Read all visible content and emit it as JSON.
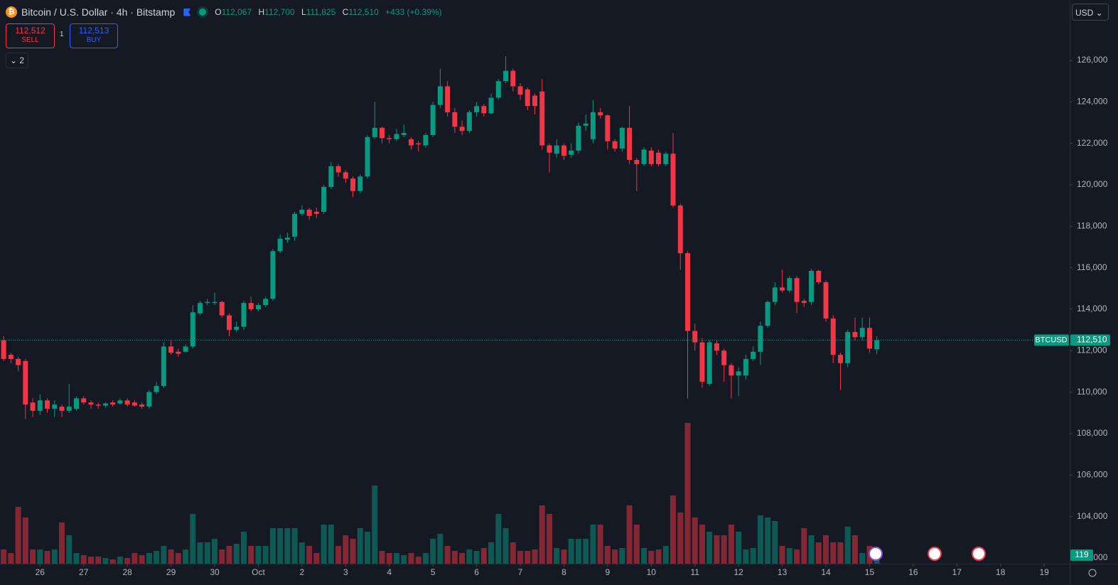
{
  "header": {
    "symbol": "Bitcoin / U.S. Dollar · 4h · Bitstamp",
    "ohlc": [
      {
        "key": "O",
        "value": "112,067"
      },
      {
        "key": "H",
        "value": "112,700"
      },
      {
        "key": "L",
        "value": "111,825"
      },
      {
        "key": "C",
        "value": "112,510"
      }
    ],
    "change": "+433 (+0.39%)"
  },
  "trade": {
    "sell_price": "112,512",
    "sell": "SELL",
    "spread": "1",
    "buy_price": "112,513",
    "buy": "BUY"
  },
  "indicators_count": "2",
  "currency": "USD",
  "symbol_label": "BTCUSD",
  "chart_data": {
    "type": "candlestick",
    "up_color": "#089981",
    "down_color": "#f23645",
    "open": [
      112500,
      111800,
      111600,
      111500,
      109500,
      109100,
      109600,
      109200,
      109300,
      109100,
      109200,
      109700,
      109500,
      109400,
      109350,
      109500,
      109450,
      109600,
      109500,
      109400,
      109300,
      110000,
      110300,
      112200,
      111950,
      111950,
      112200,
      113800,
      114300,
      114300,
      114350,
      113700,
      113000,
      113150,
      114300,
      114000,
      114200,
      114500,
      116800,
      117350,
      117500,
      118600,
      118800,
      118700,
      118700,
      119900,
      120900,
      120600,
      120300,
      119700,
      120400,
      122300,
      122750,
      122250,
      122200,
      122400,
      122200,
      122000,
      121900,
      122400,
      123850,
      124750,
      123500,
      122800,
      122600,
      123500,
      123800,
      123450,
      124200,
      125000,
      125500,
      124750,
      124600,
      124300,
      124500,
      121900,
      121500,
      121900,
      121450,
      121650,
      122850,
      122200,
      123500,
      123350,
      122100,
      121750,
      122750,
      121200,
      121000,
      121650,
      121550,
      121000,
      121500,
      119000,
      116700,
      112950,
      112400,
      110400,
      112350,
      112000,
      111300,
      110800,
      110800,
      111600,
      111950,
      113200,
      114350,
      115050,
      114900,
      115500,
      114400,
      114350,
      115850,
      115300,
      113550,
      111800,
      111400,
      112900,
      112650,
      113100,
      112067
    ],
    "high": [
      112700,
      111900,
      111700,
      111600,
      109700,
      109900,
      109700,
      109600,
      109400,
      110400,
      109800,
      109800,
      109600,
      109500,
      109500,
      109600,
      109700,
      109700,
      109600,
      109500,
      110100,
      110500,
      112400,
      112500,
      112100,
      112300,
      114200,
      114400,
      114500,
      114800,
      114400,
      113800,
      113400,
      114400,
      114600,
      114300,
      114600,
      116900,
      117600,
      117700,
      118700,
      119000,
      118900,
      118900,
      120000,
      121100,
      121000,
      120700,
      120400,
      120500,
      122400,
      124000,
      122800,
      122400,
      122700,
      122900,
      122300,
      122100,
      122500,
      124000,
      125600,
      125000,
      123700,
      123100,
      123600,
      124000,
      123900,
      124400,
      125100,
      126200,
      125600,
      124900,
      124700,
      124400,
      125100,
      122000,
      122200,
      122000,
      122000,
      123000,
      123400,
      124100,
      123700,
      123400,
      122200,
      122800,
      123800,
      121300,
      121800,
      121800,
      121700,
      121600,
      122500,
      119100,
      116800,
      113300,
      112600,
      112500,
      112500,
      112100,
      111400,
      111200,
      111800,
      112200,
      113400,
      114400,
      115300,
      115900,
      115600,
      115600,
      114500,
      115950,
      115900,
      115400,
      113700,
      111900,
      113000,
      113600,
      113600,
      113600,
      112700
    ],
    "low": [
      111500,
      111400,
      111000,
      108700,
      108800,
      108900,
      109000,
      108800,
      108800,
      109000,
      109100,
      109400,
      109200,
      109200,
      109250,
      109300,
      109400,
      109300,
      109300,
      109200,
      109200,
      109900,
      110200,
      111800,
      111700,
      111900,
      112100,
      113700,
      114200,
      114200,
      113600,
      112700,
      112900,
      113000,
      113900,
      113900,
      114100,
      114400,
      116700,
      117200,
      117300,
      118500,
      118300,
      118400,
      118600,
      119800,
      120400,
      120100,
      119400,
      119600,
      120300,
      122200,
      122000,
      122000,
      122100,
      122300,
      121700,
      121600,
      121800,
      122300,
      123700,
      123300,
      122500,
      122400,
      122500,
      123300,
      123300,
      123400,
      124100,
      124900,
      124500,
      124100,
      123600,
      123400,
      121700,
      120600,
      121300,
      121200,
      121300,
      121500,
      122600,
      122000,
      123200,
      121700,
      121600,
      121600,
      121000,
      119700,
      120900,
      120900,
      120900,
      120900,
      118900,
      115900,
      109700,
      112000,
      110200,
      110300,
      111800,
      110500,
      109700,
      109800,
      110600,
      111500,
      111300,
      113100,
      114200,
      114800,
      114800,
      113800,
      114100,
      114200,
      115200,
      113400,
      111400,
      110100,
      111200,
      112500,
      112500,
      111900,
      111825
    ],
    "close": [
      111600,
      111600,
      111300,
      109400,
      109100,
      109600,
      109200,
      109400,
      109100,
      109300,
      109700,
      109500,
      109400,
      109350,
      109450,
      109400,
      109600,
      109400,
      109350,
      109300,
      110000,
      110300,
      112200,
      111900,
      111850,
      112200,
      113850,
      114300,
      114350,
      114350,
      113700,
      113000,
      113150,
      114300,
      114000,
      114200,
      114500,
      116800,
      117400,
      117450,
      118600,
      118800,
      118500,
      118600,
      119900,
      120900,
      120600,
      120300,
      119700,
      120400,
      122300,
      122750,
      122250,
      122200,
      122450,
      122500,
      121900,
      121950,
      122400,
      123850,
      124750,
      123500,
      122800,
      122600,
      123500,
      123800,
      123450,
      124200,
      125000,
      125500,
      124750,
      124350,
      123800,
      123800,
      121900,
      121550,
      121900,
      121400,
      121650,
      122850,
      122950,
      123500,
      123350,
      122100,
      121750,
      122750,
      121200,
      121000,
      121700,
      121000,
      121000,
      121500,
      119000,
      116700,
      112950,
      112400,
      110500,
      112400,
      112000,
      111300,
      110800,
      111000,
      111600,
      111950,
      113200,
      114350,
      115050,
      114900,
      115500,
      114350,
      114300,
      115850,
      115300,
      113550,
      111800,
      111400,
      112900,
      112650,
      113100,
      112100,
      112510
    ],
    "volume": {
      "values": [
        160,
        120,
        640,
        520,
        160,
        160,
        144,
        160,
        464,
        320,
        120,
        96,
        80,
        80,
        64,
        48,
        80,
        64,
        120,
        96,
        120,
        144,
        200,
        160,
        120,
        160,
        560,
        240,
        240,
        280,
        160,
        200,
        224,
        360,
        200,
        200,
        200,
        400,
        400,
        400,
        400,
        240,
        200,
        120,
        440,
        440,
        200,
        320,
        280,
        400,
        360,
        880,
        144,
        120,
        120,
        96,
        120,
        80,
        120,
        280,
        336,
        200,
        144,
        120,
        160,
        144,
        176,
        240,
        560,
        400,
        240,
        144,
        144,
        160,
        656,
        560,
        176,
        160,
        280,
        280,
        280,
        440,
        440,
        200,
        160,
        176,
        656,
        440,
        176,
        144,
        160,
        200,
        768,
        576,
        1584,
        520,
        440,
        360,
        320,
        320,
        440,
        360,
        160,
        176,
        544,
        520,
        480,
        200,
        176,
        160,
        400,
        320,
        240,
        320,
        240,
        240,
        416,
        320,
        120,
        200,
        119
      ],
      "ylim": [
        0,
        1600
      ]
    },
    "last_close_label": "112,510",
    "ylim": [
      101725,
      128914
    ],
    "yticks": [
      {
        "value": 102000,
        "label": "102,000"
      },
      {
        "value": 104000,
        "label": "104,000"
      },
      {
        "value": 106000,
        "label": "106,000"
      },
      {
        "value": 108000,
        "label": "108,000"
      },
      {
        "value": 110000,
        "label": "110,000"
      },
      {
        "value": 112000,
        "label": "112,000"
      },
      {
        "value": 114000,
        "label": "114,000"
      },
      {
        "value": 116000,
        "label": "116,000"
      },
      {
        "value": 118000,
        "label": "118,000"
      },
      {
        "value": 120000,
        "label": "120,000"
      },
      {
        "value": 122000,
        "label": "122,000"
      },
      {
        "value": 124000,
        "label": "124,000"
      },
      {
        "value": 126000,
        "label": "126,000"
      }
    ],
    "xlim": [
      -0.5,
      146.5
    ],
    "xticks": [
      {
        "value": 5,
        "label": "26"
      },
      {
        "value": 11,
        "label": "27"
      },
      {
        "value": 17,
        "label": "28"
      },
      {
        "value": 23,
        "label": "29"
      },
      {
        "value": 29,
        "label": "30"
      },
      {
        "value": 35,
        "label": "Oct"
      },
      {
        "value": 41,
        "label": "2"
      },
      {
        "value": 47,
        "label": "3"
      },
      {
        "value": 53,
        "label": "4"
      },
      {
        "value": 59,
        "label": "5"
      },
      {
        "value": 65,
        "label": "6"
      },
      {
        "value": 71,
        "label": "7"
      },
      {
        "value": 77,
        "label": "8"
      },
      {
        "value": 83,
        "label": "9"
      },
      {
        "value": 89,
        "label": "10"
      },
      {
        "value": 95,
        "label": "11"
      },
      {
        "value": 101,
        "label": "12"
      },
      {
        "value": 107,
        "label": "13"
      },
      {
        "value": 113,
        "label": "14"
      },
      {
        "value": 119,
        "label": "15"
      },
      {
        "value": 125,
        "label": "16"
      },
      {
        "value": 131,
        "label": "17"
      },
      {
        "value": 137,
        "label": "18"
      },
      {
        "value": 143,
        "label": "19"
      }
    ]
  }
}
